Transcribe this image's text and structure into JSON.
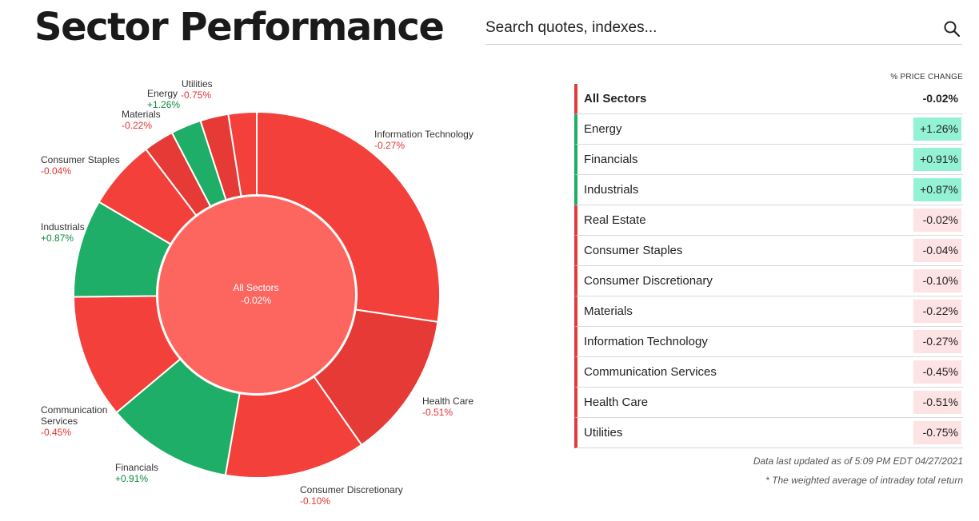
{
  "header": {
    "title": "Sector Performance"
  },
  "search": {
    "placeholder": "Search quotes, indexes..."
  },
  "colors": {
    "positive": "#1fae67",
    "negative": "#f4403a",
    "negative_alt": "#e53a36",
    "center": "#fd655f",
    "positive_bg": "#93f2d3",
    "negative_bg": "#fde3e3"
  },
  "chart_data": {
    "type": "pie",
    "center": {
      "label": "All Sectors",
      "value": "-0.02%"
    },
    "slices": [
      {
        "name": "Information Technology",
        "change": -0.27,
        "change_label": "-0.27%",
        "weight": 27.5
      },
      {
        "name": "Health Care",
        "change": -0.51,
        "change_label": "-0.51%",
        "weight": 13.0
      },
      {
        "name": "Consumer Discretionary",
        "change": -0.1,
        "change_label": "-0.10%",
        "weight": 12.5
      },
      {
        "name": "Financials",
        "change": 0.91,
        "change_label": "+0.91%",
        "weight": 11.2
      },
      {
        "name": "Communication Services",
        "change": -0.45,
        "change_label": "-0.45%",
        "weight": 11.0
      },
      {
        "name": "Industrials",
        "change": 0.87,
        "change_label": "+0.87%",
        "weight": 8.7
      },
      {
        "name": "Consumer Staples",
        "change": -0.04,
        "change_label": "-0.04%",
        "weight": 6.2
      },
      {
        "name": "Materials",
        "change": -0.22,
        "change_label": "-0.22%",
        "weight": 2.7
      },
      {
        "name": "Energy",
        "change": 1.26,
        "change_label": "+1.26%",
        "weight": 2.7
      },
      {
        "name": "Utilities",
        "change": -0.75,
        "change_label": "-0.75%",
        "weight": 2.5
      },
      {
        "name": "Real Estate",
        "change": -0.02,
        "change_label": "-0.02%",
        "weight": 2.5
      }
    ],
    "chart_labels": {
      "information_technology": {
        "name": "Information Technology",
        "value": "-0.27%"
      },
      "health_care": {
        "name": "Health Care",
        "value": "-0.51%"
      },
      "consumer_discretionary": {
        "name": "Consumer Discretionary",
        "value": "-0.10%"
      },
      "financials": {
        "name": "Financials",
        "value": "+0.91%"
      },
      "communication_services_1": "Communication",
      "communication_services_2": "Services",
      "communication_services_value": "-0.45%",
      "industrials": {
        "name": "Industrials",
        "value": "+0.87%"
      },
      "consumer_staples": {
        "name": "Consumer Staples",
        "value": "-0.04%"
      },
      "materials": {
        "name": "Materials",
        "value": "-0.22%"
      },
      "energy": {
        "name": "Energy",
        "value": "+1.26%"
      },
      "utilities": {
        "name": "Utilities",
        "value": "-0.75%"
      }
    }
  },
  "table": {
    "column_header": "% PRICE CHANGE",
    "rows": [
      {
        "name": "All Sectors",
        "value": "-0.02%",
        "trend": "negative"
      },
      {
        "name": "Energy",
        "value": "+1.26%",
        "trend": "positive"
      },
      {
        "name": "Financials",
        "value": "+0.91%",
        "trend": "positive"
      },
      {
        "name": "Industrials",
        "value": "+0.87%",
        "trend": "positive"
      },
      {
        "name": "Real Estate",
        "value": "-0.02%",
        "trend": "negative"
      },
      {
        "name": "Consumer Staples",
        "value": "-0.04%",
        "trend": "negative"
      },
      {
        "name": "Consumer Discretionary",
        "value": "-0.10%",
        "trend": "negative"
      },
      {
        "name": "Materials",
        "value": "-0.22%",
        "trend": "negative"
      },
      {
        "name": "Information Technology",
        "value": "-0.27%",
        "trend": "negative"
      },
      {
        "name": "Communication Services",
        "value": "-0.45%",
        "trend": "negative"
      },
      {
        "name": "Health Care",
        "value": "-0.51%",
        "trend": "negative"
      },
      {
        "name": "Utilities",
        "value": "-0.75%",
        "trend": "negative"
      }
    ]
  },
  "footer": {
    "updated": "Data last updated as of 5:09 PM EDT 04/27/2021",
    "note": "* The weighted average of intraday total return"
  }
}
